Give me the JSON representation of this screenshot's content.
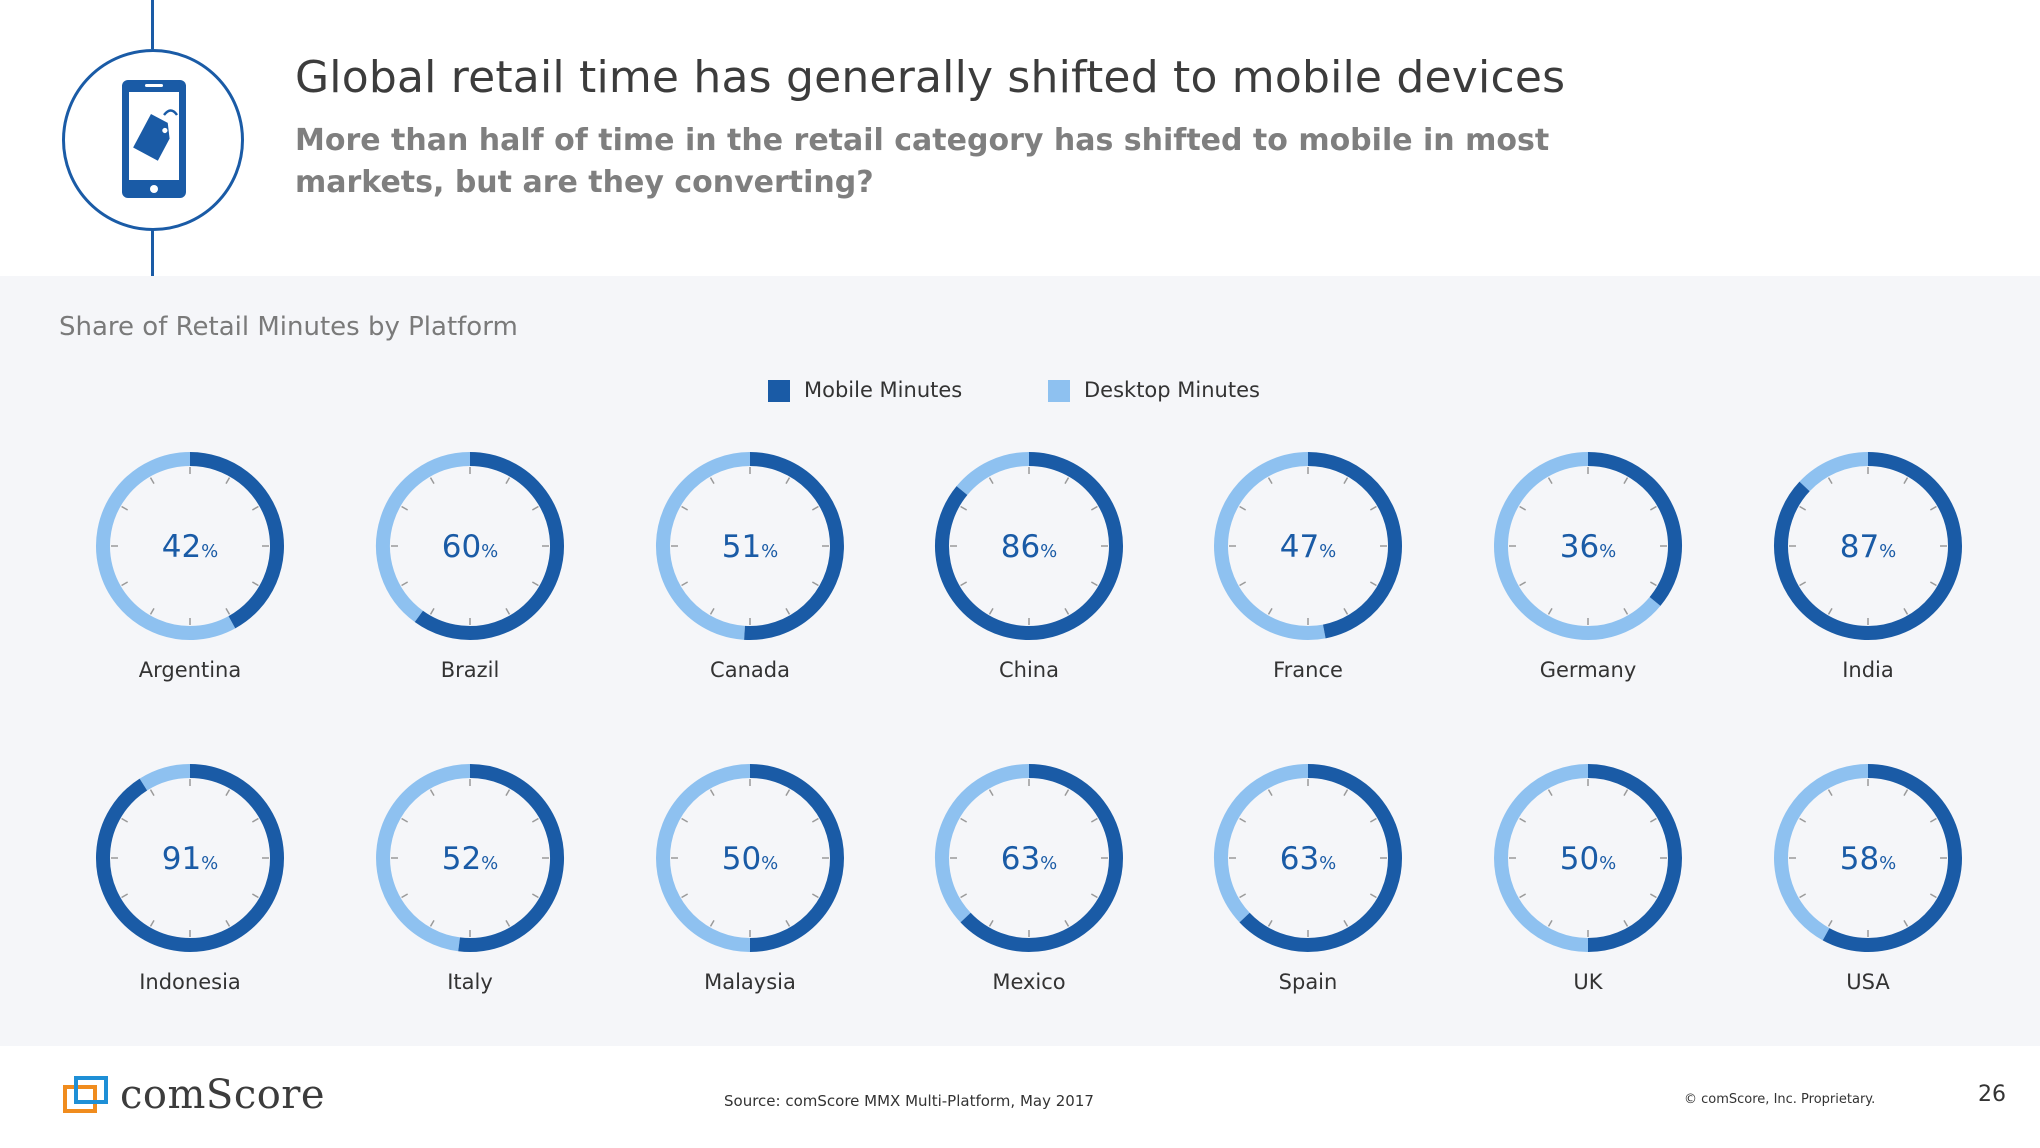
{
  "slide": {
    "title": "Global retail time has generally shifted to mobile devices",
    "subtitle": "More than half of time in the retail category has shifted to mobile in most markets, but are they converting?",
    "header_icon": "mobile-shopping-tag-icon"
  },
  "chart_data": {
    "type": "pie",
    "title": "Share of Retail Minutes by Platform",
    "unit": "%",
    "legend": [
      {
        "name": "Mobile Minutes",
        "color": "#1a5ba6"
      },
      {
        "name": "Desktop Minutes",
        "color": "#8ec1f0"
      }
    ],
    "categories": [
      "Argentina",
      "Brazil",
      "Canada",
      "China",
      "France",
      "Germany",
      "India",
      "Indonesia",
      "Italy",
      "Malaysia",
      "Mexico",
      "Spain",
      "UK",
      "USA"
    ],
    "series": [
      {
        "name": "Mobile Minutes",
        "values": [
          42,
          60,
          51,
          86,
          47,
          36,
          87,
          91,
          52,
          50,
          63,
          63,
          50,
          58
        ]
      },
      {
        "name": "Desktop Minutes",
        "values": [
          58,
          40,
          49,
          14,
          53,
          64,
          13,
          9,
          48,
          50,
          37,
          37,
          50,
          42
        ]
      }
    ]
  },
  "footer": {
    "brand": "comScore",
    "source": "Source: comScore MMX Multi-Platform, May 2017",
    "copyright": "© comScore, Inc. Proprietary.",
    "page_number": "26"
  }
}
